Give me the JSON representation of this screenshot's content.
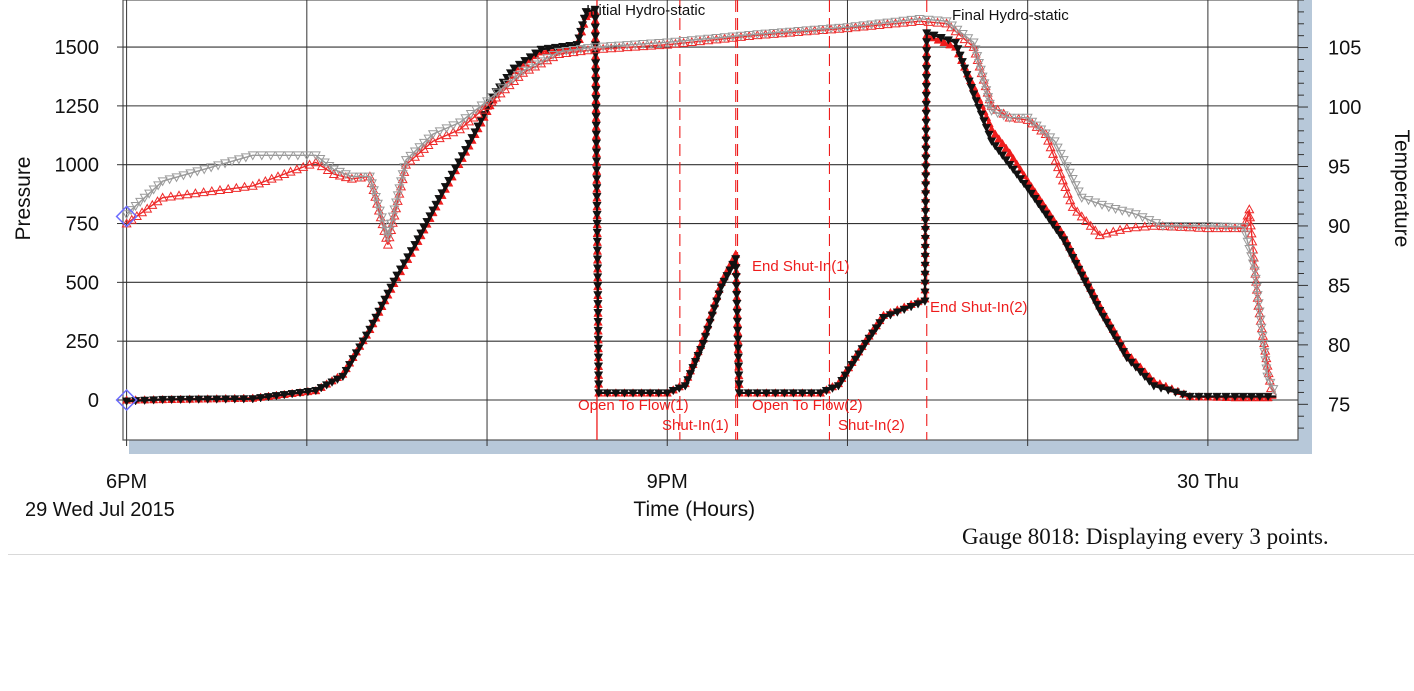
{
  "chart_data": {
    "type": "line",
    "xlabel": "Time (Hours)",
    "ylabel_left": "Pressure",
    "ylabel_right": "Temperature",
    "x_ticks": [
      "6PM",
      "9PM",
      "30 Thu"
    ],
    "x_date_label": "29 Wed Jul 2015",
    "x_range_hours": [
      17.98,
      24.5
    ],
    "ylim_left": [
      -170,
      1700
    ],
    "ylim_right": [
      72,
      109
    ],
    "left_ticks": [
      "0",
      "250",
      "500",
      "750",
      "1000",
      "1250",
      "1500"
    ],
    "right_ticks": [
      "75",
      "80",
      "85",
      "90",
      "95",
      "100",
      "105"
    ],
    "grid": true,
    "series": [
      {
        "axis": "left",
        "color": "#ee1c1c",
        "marker": "triangle-up",
        "points": [
          [
            18.0,
            0
          ],
          [
            18.2,
            2
          ],
          [
            18.7,
            8
          ],
          [
            19.05,
            40
          ],
          [
            19.2,
            110
          ],
          [
            19.35,
            300
          ],
          [
            19.5,
            520
          ],
          [
            19.6,
            650
          ],
          [
            19.75,
            870
          ],
          [
            19.9,
            1080
          ],
          [
            20.05,
            1300
          ],
          [
            20.15,
            1400
          ],
          [
            20.3,
            1480
          ],
          [
            20.5,
            1500
          ],
          [
            20.55,
            1630
          ],
          [
            20.6,
            1650
          ],
          [
            20.62,
            30
          ],
          [
            21.0,
            30
          ],
          [
            21.1,
            70
          ],
          [
            21.2,
            260
          ],
          [
            21.3,
            500
          ],
          [
            21.38,
            620
          ],
          [
            21.4,
            30
          ],
          [
            21.85,
            30
          ],
          [
            21.95,
            70
          ],
          [
            22.1,
            250
          ],
          [
            22.2,
            360
          ],
          [
            22.43,
            430
          ],
          [
            22.44,
            1550
          ],
          [
            22.6,
            1500
          ],
          [
            22.7,
            1330
          ],
          [
            22.8,
            1150
          ],
          [
            22.9,
            1050
          ],
          [
            23.0,
            930
          ],
          [
            23.2,
            700
          ],
          [
            23.4,
            400
          ],
          [
            23.55,
            200
          ],
          [
            23.7,
            80
          ],
          [
            23.9,
            15
          ],
          [
            24.15,
            10
          ],
          [
            24.38,
            10
          ]
        ]
      },
      {
        "axis": "left",
        "color": "#111111",
        "marker": "triangle-down",
        "points": [
          [
            18.0,
            -5
          ],
          [
            18.2,
            2
          ],
          [
            18.7,
            5
          ],
          [
            19.05,
            40
          ],
          [
            19.2,
            100
          ],
          [
            19.35,
            300
          ],
          [
            19.5,
            530
          ],
          [
            19.6,
            660
          ],
          [
            19.75,
            880
          ],
          [
            19.9,
            1090
          ],
          [
            20.05,
            1310
          ],
          [
            20.15,
            1410
          ],
          [
            20.3,
            1490
          ],
          [
            20.5,
            1510
          ],
          [
            20.55,
            1650
          ],
          [
            20.6,
            1660
          ],
          [
            20.62,
            30
          ],
          [
            21.0,
            30
          ],
          [
            21.1,
            60
          ],
          [
            21.2,
            240
          ],
          [
            21.3,
            480
          ],
          [
            21.38,
            600
          ],
          [
            21.4,
            30
          ],
          [
            21.85,
            30
          ],
          [
            21.95,
            60
          ],
          [
            22.1,
            240
          ],
          [
            22.2,
            350
          ],
          [
            22.43,
            420
          ],
          [
            22.44,
            1560
          ],
          [
            22.6,
            1520
          ],
          [
            22.7,
            1300
          ],
          [
            22.8,
            1100
          ],
          [
            22.9,
            1000
          ],
          [
            23.0,
            900
          ],
          [
            23.2,
            680
          ],
          [
            23.4,
            380
          ],
          [
            23.55,
            180
          ],
          [
            23.7,
            60
          ],
          [
            23.9,
            15
          ],
          [
            24.15,
            15
          ],
          [
            24.38,
            15
          ]
        ]
      },
      {
        "axis": "left",
        "color": "#ee2a2a",
        "marker": "triangle-up-open",
        "points": [
          [
            18.0,
            750
          ],
          [
            18.2,
            860
          ],
          [
            18.7,
            910
          ],
          [
            19.05,
            1010
          ],
          [
            19.15,
            960
          ],
          [
            19.25,
            940
          ],
          [
            19.35,
            950
          ],
          [
            19.45,
            660
          ],
          [
            19.55,
            1000
          ],
          [
            19.7,
            1100
          ],
          [
            19.85,
            1150
          ],
          [
            20.0,
            1250
          ],
          [
            20.2,
            1390
          ],
          [
            20.4,
            1470
          ],
          [
            20.6,
            1490
          ],
          [
            21.0,
            1510
          ],
          [
            21.5,
            1550
          ],
          [
            22.0,
            1580
          ],
          [
            22.4,
            1610
          ],
          [
            22.55,
            1600
          ],
          [
            22.7,
            1500
          ],
          [
            22.8,
            1250
          ],
          [
            22.9,
            1200
          ],
          [
            23.0,
            1190
          ],
          [
            23.1,
            1130
          ],
          [
            23.25,
            820
          ],
          [
            23.4,
            700
          ],
          [
            23.55,
            730
          ],
          [
            23.7,
            740
          ],
          [
            24.0,
            730
          ],
          [
            24.2,
            730
          ],
          [
            24.23,
            810
          ],
          [
            24.28,
            400
          ],
          [
            24.35,
            50
          ],
          [
            24.38,
            20
          ]
        ]
      },
      {
        "axis": "left",
        "color": "#9a9a9a",
        "marker": "triangle-down-open",
        "points": [
          [
            18.0,
            790
          ],
          [
            18.2,
            930
          ],
          [
            18.7,
            1040
          ],
          [
            19.05,
            1040
          ],
          [
            19.15,
            980
          ],
          [
            19.25,
            950
          ],
          [
            19.35,
            950
          ],
          [
            19.45,
            690
          ],
          [
            19.55,
            1020
          ],
          [
            19.7,
            1130
          ],
          [
            19.85,
            1180
          ],
          [
            20.0,
            1270
          ],
          [
            20.2,
            1400
          ],
          [
            20.4,
            1480
          ],
          [
            20.6,
            1500
          ],
          [
            21.0,
            1520
          ],
          [
            21.5,
            1555
          ],
          [
            22.0,
            1585
          ],
          [
            22.4,
            1620
          ],
          [
            22.55,
            1610
          ],
          [
            22.7,
            1520
          ],
          [
            22.8,
            1230
          ],
          [
            22.9,
            1200
          ],
          [
            23.0,
            1200
          ],
          [
            23.15,
            1100
          ],
          [
            23.3,
            860
          ],
          [
            23.45,
            820
          ],
          [
            23.6,
            790
          ],
          [
            23.75,
            740
          ],
          [
            24.0,
            740
          ],
          [
            24.2,
            735
          ],
          [
            24.26,
            550
          ],
          [
            24.33,
            100
          ],
          [
            24.38,
            20
          ]
        ]
      }
    ],
    "annotations": [
      {
        "text": "Initial Hydro-static",
        "color": "#111111"
      },
      {
        "text": "Final Hydro-static",
        "color": "#111111"
      },
      {
        "text": "Open To Flow(1)",
        "color": "#ee1c1c"
      },
      {
        "text": "Shut-In(1)",
        "color": "#ee1c1c"
      },
      {
        "text": "End Shut-In(1)",
        "color": "#ee1c1c"
      },
      {
        "text": "Open To Flow(2)",
        "color": "#ee1c1c"
      },
      {
        "text": "Shut-In(2)",
        "color": "#ee1c1c"
      },
      {
        "text": "End Shut-In(2)",
        "color": "#ee1c1c"
      }
    ],
    "event_lines": [
      {
        "x": 20.61,
        "style": "solid"
      },
      {
        "x": 21.07,
        "style": "dashed"
      },
      {
        "x": 21.38,
        "style": "dashed"
      },
      {
        "x": 21.39,
        "style": "dashed"
      },
      {
        "x": 21.9,
        "style": "dashed"
      },
      {
        "x": 22.44,
        "style": "dashed"
      }
    ]
  },
  "caption": "Gauge 8018: Displaying every 3 points."
}
